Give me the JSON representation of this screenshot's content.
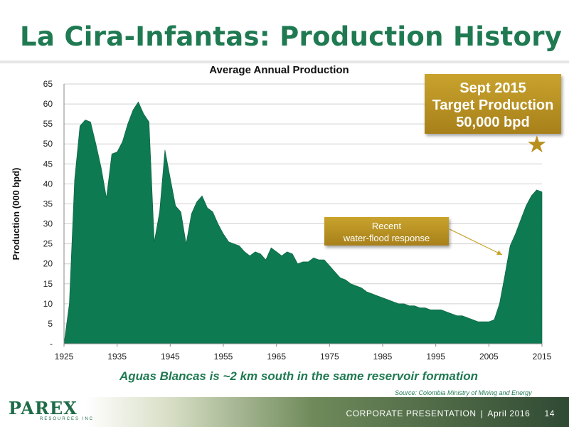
{
  "header": {
    "title": "La Cira-Infantas: Production History"
  },
  "chart_data": {
    "type": "area",
    "title": "Average Annual Production",
    "ylabel": "Production (000 bpd)",
    "xlabel": "",
    "xlim": [
      1925,
      2015
    ],
    "ylim": [
      0,
      65
    ],
    "yticks": [
      0,
      5,
      10,
      15,
      20,
      25,
      30,
      35,
      40,
      45,
      50,
      55,
      60,
      65
    ],
    "ytick_labels": [
      "-",
      "5",
      "10",
      "15",
      "20",
      "25",
      "30",
      "35",
      "40",
      "45",
      "50",
      "55",
      "60",
      "65"
    ],
    "xticks": [
      1925,
      1935,
      1945,
      1955,
      1965,
      1975,
      1985,
      1995,
      2005,
      2015
    ],
    "grid": "horizontal",
    "fill_color": "#0d7a52",
    "x": [
      1925,
      1926,
      1927,
      1928,
      1929,
      1930,
      1931,
      1932,
      1933,
      1934,
      1935,
      1936,
      1937,
      1938,
      1939,
      1940,
      1941,
      1942,
      1943,
      1944,
      1945,
      1946,
      1947,
      1948,
      1949,
      1950,
      1951,
      1952,
      1953,
      1954,
      1955,
      1956,
      1957,
      1958,
      1959,
      1960,
      1961,
      1962,
      1963,
      1964,
      1965,
      1966,
      1967,
      1968,
      1969,
      1970,
      1971,
      1972,
      1973,
      1974,
      1975,
      1976,
      1977,
      1978,
      1979,
      1980,
      1981,
      1982,
      1983,
      1984,
      1985,
      1986,
      1987,
      1988,
      1989,
      1990,
      1991,
      1992,
      1993,
      1994,
      1995,
      1996,
      1997,
      1998,
      1999,
      2000,
      2001,
      2002,
      2003,
      2004,
      2005,
      2006,
      2007,
      2008,
      2009,
      2010,
      2011,
      2012,
      2013,
      2014,
      2015
    ],
    "values": [
      0,
      10,
      41,
      54.5,
      56,
      55.5,
      50,
      44,
      36.5,
      47.5,
      48,
      50.5,
      55,
      58.5,
      60.5,
      57.5,
      55.5,
      25.5,
      33,
      48.5,
      41.5,
      34.5,
      33,
      25,
      32.5,
      35.5,
      37,
      34,
      33,
      30,
      27.5,
      25.5,
      25,
      24.5,
      23,
      22,
      23,
      22.5,
      21,
      24,
      23,
      22,
      23,
      22.5,
      20,
      20.5,
      20.5,
      21.5,
      21,
      21,
      19.5,
      18,
      16.5,
      16,
      15,
      14.5,
      14,
      13,
      12.5,
      12,
      11.5,
      11,
      10.5,
      10,
      10,
      9.5,
      9.5,
      9,
      9,
      8.5,
      8.5,
      8.5,
      8,
      7.5,
      7,
      7,
      6.5,
      6,
      5.5,
      5.5,
      5.5,
      6,
      10,
      17,
      24.5,
      27.5,
      31,
      34.5,
      37,
      38.5,
      38
    ]
  },
  "callouts": {
    "target": {
      "line1": "Sept 2015",
      "line2": "Target Production",
      "line3": "50,000 bpd"
    },
    "recent": {
      "line1": "Recent",
      "line2": "water-flood response"
    }
  },
  "subtitle": "Aguas Blancas is ~2 km south in the same reservoir formation",
  "source": "Source: Colombia Ministry of Mining and Energy",
  "footer": {
    "label": "CORPORATE PRESENTATION",
    "separator": "|",
    "date": "April 2016",
    "page": "14"
  },
  "logo": {
    "word": "PAREX",
    "sub": "RESOURCES INC"
  },
  "icons": {
    "target_marker": "star-icon"
  }
}
